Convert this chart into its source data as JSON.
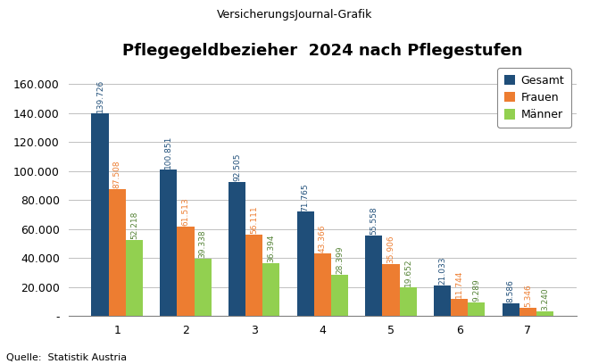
{
  "title": "Pflegegeldbezieher  2024 nach Pflegestufen",
  "supertitle": "VersicherungsJournal-Grafik",
  "source": "Quelle:  Statistik Austria",
  "categories": [
    "1",
    "2",
    "3",
    "4",
    "5",
    "6",
    "7"
  ],
  "gesamt": [
    139726,
    100851,
    92505,
    71765,
    55558,
    21033,
    8586
  ],
  "frauen": [
    87508,
    61513,
    56111,
    43366,
    35906,
    11744,
    5346
  ],
  "maenner": [
    52218,
    39338,
    36394,
    28399,
    19652,
    9289,
    3240
  ],
  "color_gesamt": "#1F4E79",
  "color_frauen": "#ED7D31",
  "color_maenner": "#92D050",
  "color_maenner_label": "#548235",
  "legend_labels": [
    "Gesamt",
    "Frauen",
    "Männer"
  ],
  "ylim": [
    0,
    175000
  ],
  "yticks": [
    0,
    20000,
    40000,
    60000,
    80000,
    100000,
    120000,
    140000,
    160000
  ],
  "bar_width": 0.25,
  "label_fontsize": 6.5,
  "tick_fontsize": 9,
  "title_fontsize": 13,
  "supertitle_fontsize": 9,
  "source_fontsize": 8,
  "legend_fontsize": 9
}
